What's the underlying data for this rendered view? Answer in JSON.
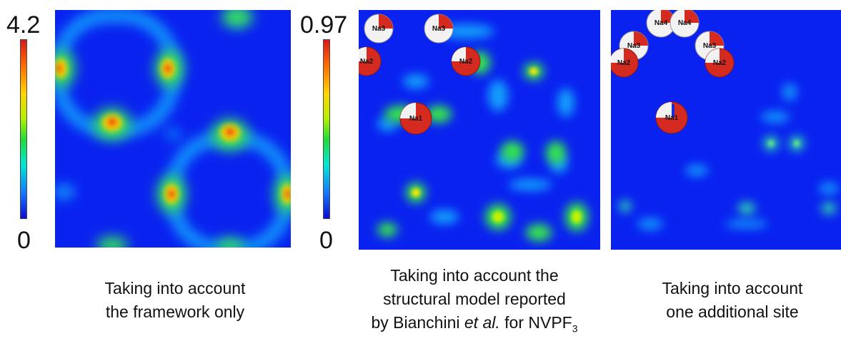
{
  "panels": [
    {
      "scale_max": "4.2",
      "scale_min": "0",
      "caption_line1": "Taking into account",
      "caption_line2": "the framework only"
    },
    {
      "scale_max": "0.97",
      "scale_min": "0",
      "caption_line1": "Taking into account the",
      "caption_line2": "structural model reported",
      "caption_line3_prefix": "by Bianchini ",
      "caption_line3_italic": "et al.",
      "caption_line3_suffix": " for NVPF",
      "caption_line3_sub": "3",
      "atom_labels": [
        "Na3",
        "Na3",
        "Na2",
        "Na2",
        "Na1"
      ]
    },
    {
      "caption_line1": "Taking into account",
      "caption_line2": "one additional site",
      "atom_labels": [
        "Na4",
        "Na4",
        "Na3",
        "Na3",
        "Na2",
        "Na2",
        "Na1"
      ]
    }
  ],
  "colors": {
    "map_background": "#0a22f0",
    "atom_red": "#d42a1f",
    "atom_white": "#f2f2f2",
    "colorbar_top": "#d7191c",
    "colorbar_bottom": "#0b0bd6"
  }
}
